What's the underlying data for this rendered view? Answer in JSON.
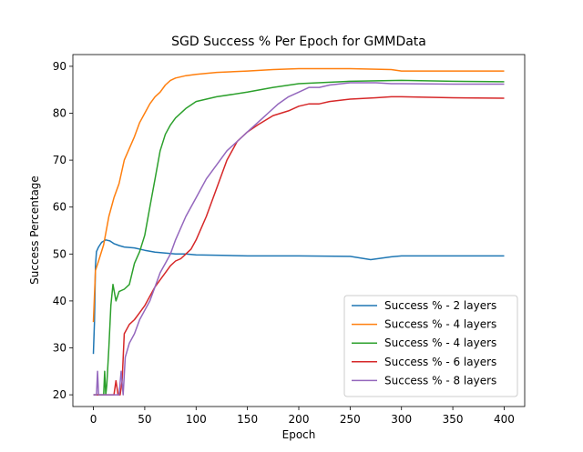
{
  "chart_data": {
    "type": "line",
    "title": "SGD Success % Per Epoch for GMMData",
    "xlabel": "Epoch",
    "ylabel": "Success Percentage",
    "xlim": [
      -20,
      420
    ],
    "ylim": [
      17.5,
      92.5
    ],
    "xticks": [
      0,
      50,
      100,
      150,
      200,
      250,
      300,
      350,
      400
    ],
    "yticks": [
      20,
      30,
      40,
      50,
      60,
      70,
      80,
      90
    ],
    "grid": false,
    "legend_position": "bottom-right",
    "series": [
      {
        "name": "Success % - 2 layers",
        "color": "#1f77b4",
        "points": [
          [
            0,
            28.7
          ],
          [
            1,
            35.5
          ],
          [
            2,
            47.5
          ],
          [
            3,
            50.5
          ],
          [
            5,
            51.5
          ],
          [
            8,
            52.5
          ],
          [
            12,
            53
          ],
          [
            16,
            52.8
          ],
          [
            20,
            52.2
          ],
          [
            25,
            51.8
          ],
          [
            30,
            51.5
          ],
          [
            40,
            51.3
          ],
          [
            50,
            50.8
          ],
          [
            60,
            50.4
          ],
          [
            70,
            50.2
          ],
          [
            80,
            50.0
          ],
          [
            90,
            50.0
          ],
          [
            100,
            49.8
          ],
          [
            125,
            49.7
          ],
          [
            150,
            49.6
          ],
          [
            200,
            49.6
          ],
          [
            250,
            49.5
          ],
          [
            270,
            48.8
          ],
          [
            290,
            49.4
          ],
          [
            300,
            49.6
          ],
          [
            350,
            49.6
          ],
          [
            400,
            49.6
          ]
        ]
      },
      {
        "name": "Success % - 4 layers",
        "color": "#ff7f0e",
        "points": [
          [
            0,
            35.5
          ],
          [
            2,
            46.5
          ],
          [
            5,
            48.5
          ],
          [
            10,
            52
          ],
          [
            15,
            58
          ],
          [
            20,
            62
          ],
          [
            25,
            65
          ],
          [
            30,
            70
          ],
          [
            35,
            72.5
          ],
          [
            40,
            75
          ],
          [
            45,
            78
          ],
          [
            50,
            80
          ],
          [
            55,
            82
          ],
          [
            60,
            83.5
          ],
          [
            65,
            84.5
          ],
          [
            70,
            86
          ],
          [
            75,
            87
          ],
          [
            80,
            87.5
          ],
          [
            90,
            88
          ],
          [
            100,
            88.3
          ],
          [
            120,
            88.7
          ],
          [
            150,
            89
          ],
          [
            175,
            89.3
          ],
          [
            200,
            89.5
          ],
          [
            250,
            89.5
          ],
          [
            290,
            89.3
          ],
          [
            300,
            89.0
          ],
          [
            350,
            89.0
          ],
          [
            400,
            89.0
          ]
        ]
      },
      {
        "name": "Success % - 4 layers",
        "color": "#2ca02c",
        "points": [
          [
            0,
            20
          ],
          [
            10,
            20
          ],
          [
            11,
            25
          ],
          [
            12,
            20
          ],
          [
            13,
            22
          ],
          [
            15,
            30
          ],
          [
            17,
            39
          ],
          [
            19,
            43.5
          ],
          [
            22,
            40
          ],
          [
            25,
            42
          ],
          [
            30,
            42.5
          ],
          [
            35,
            43.5
          ],
          [
            40,
            48
          ],
          [
            45,
            50.5
          ],
          [
            50,
            54
          ],
          [
            55,
            60
          ],
          [
            60,
            66
          ],
          [
            65,
            72
          ],
          [
            70,
            75.5
          ],
          [
            75,
            77.5
          ],
          [
            80,
            79
          ],
          [
            90,
            81
          ],
          [
            100,
            82.5
          ],
          [
            120,
            83.5
          ],
          [
            150,
            84.5
          ],
          [
            175,
            85.5
          ],
          [
            200,
            86.3
          ],
          [
            250,
            86.8
          ],
          [
            300,
            87
          ],
          [
            350,
            86.8
          ],
          [
            400,
            86.7
          ]
        ]
      },
      {
        "name": "Success % - 6 layers",
        "color": "#d62728",
        "points": [
          [
            0,
            20
          ],
          [
            20,
            20
          ],
          [
            22,
            23
          ],
          [
            24,
            20
          ],
          [
            26,
            20
          ],
          [
            28,
            23
          ],
          [
            30,
            33
          ],
          [
            35,
            35
          ],
          [
            40,
            36
          ],
          [
            45,
            37.5
          ],
          [
            50,
            39
          ],
          [
            55,
            41
          ],
          [
            60,
            43
          ],
          [
            65,
            44.5
          ],
          [
            70,
            46
          ],
          [
            75,
            47.5
          ],
          [
            80,
            48.5
          ],
          [
            85,
            49
          ],
          [
            90,
            50
          ],
          [
            95,
            51
          ],
          [
            100,
            53
          ],
          [
            110,
            58
          ],
          [
            120,
            64
          ],
          [
            130,
            70
          ],
          [
            140,
            74
          ],
          [
            150,
            76
          ],
          [
            160,
            77.5
          ],
          [
            175,
            79.5
          ],
          [
            190,
            80.5
          ],
          [
            200,
            81.5
          ],
          [
            210,
            82
          ],
          [
            220,
            82
          ],
          [
            230,
            82.5
          ],
          [
            250,
            83
          ],
          [
            275,
            83.3
          ],
          [
            290,
            83.5
          ],
          [
            300,
            83.5
          ],
          [
            350,
            83.3
          ],
          [
            400,
            83.2
          ]
        ]
      },
      {
        "name": "Success % - 8 layers",
        "color": "#9467bd",
        "points": [
          [
            0,
            20
          ],
          [
            3,
            20
          ],
          [
            4,
            25
          ],
          [
            5,
            20
          ],
          [
            25,
            20
          ],
          [
            27,
            25
          ],
          [
            29,
            20
          ],
          [
            31,
            28
          ],
          [
            35,
            31
          ],
          [
            40,
            33
          ],
          [
            45,
            36
          ],
          [
            50,
            38
          ],
          [
            55,
            40
          ],
          [
            60,
            43
          ],
          [
            65,
            46
          ],
          [
            70,
            48
          ],
          [
            75,
            50
          ],
          [
            80,
            53
          ],
          [
            90,
            58
          ],
          [
            100,
            62
          ],
          [
            110,
            66
          ],
          [
            120,
            69
          ],
          [
            130,
            72
          ],
          [
            140,
            74
          ],
          [
            150,
            76
          ],
          [
            160,
            78
          ],
          [
            170,
            80
          ],
          [
            180,
            82
          ],
          [
            190,
            83.5
          ],
          [
            200,
            84.5
          ],
          [
            210,
            85.5
          ],
          [
            220,
            85.5
          ],
          [
            230,
            86
          ],
          [
            250,
            86.5
          ],
          [
            275,
            86.5
          ],
          [
            290,
            86.3
          ],
          [
            300,
            86.3
          ],
          [
            350,
            86.2
          ],
          [
            400,
            86.2
          ]
        ]
      }
    ]
  }
}
